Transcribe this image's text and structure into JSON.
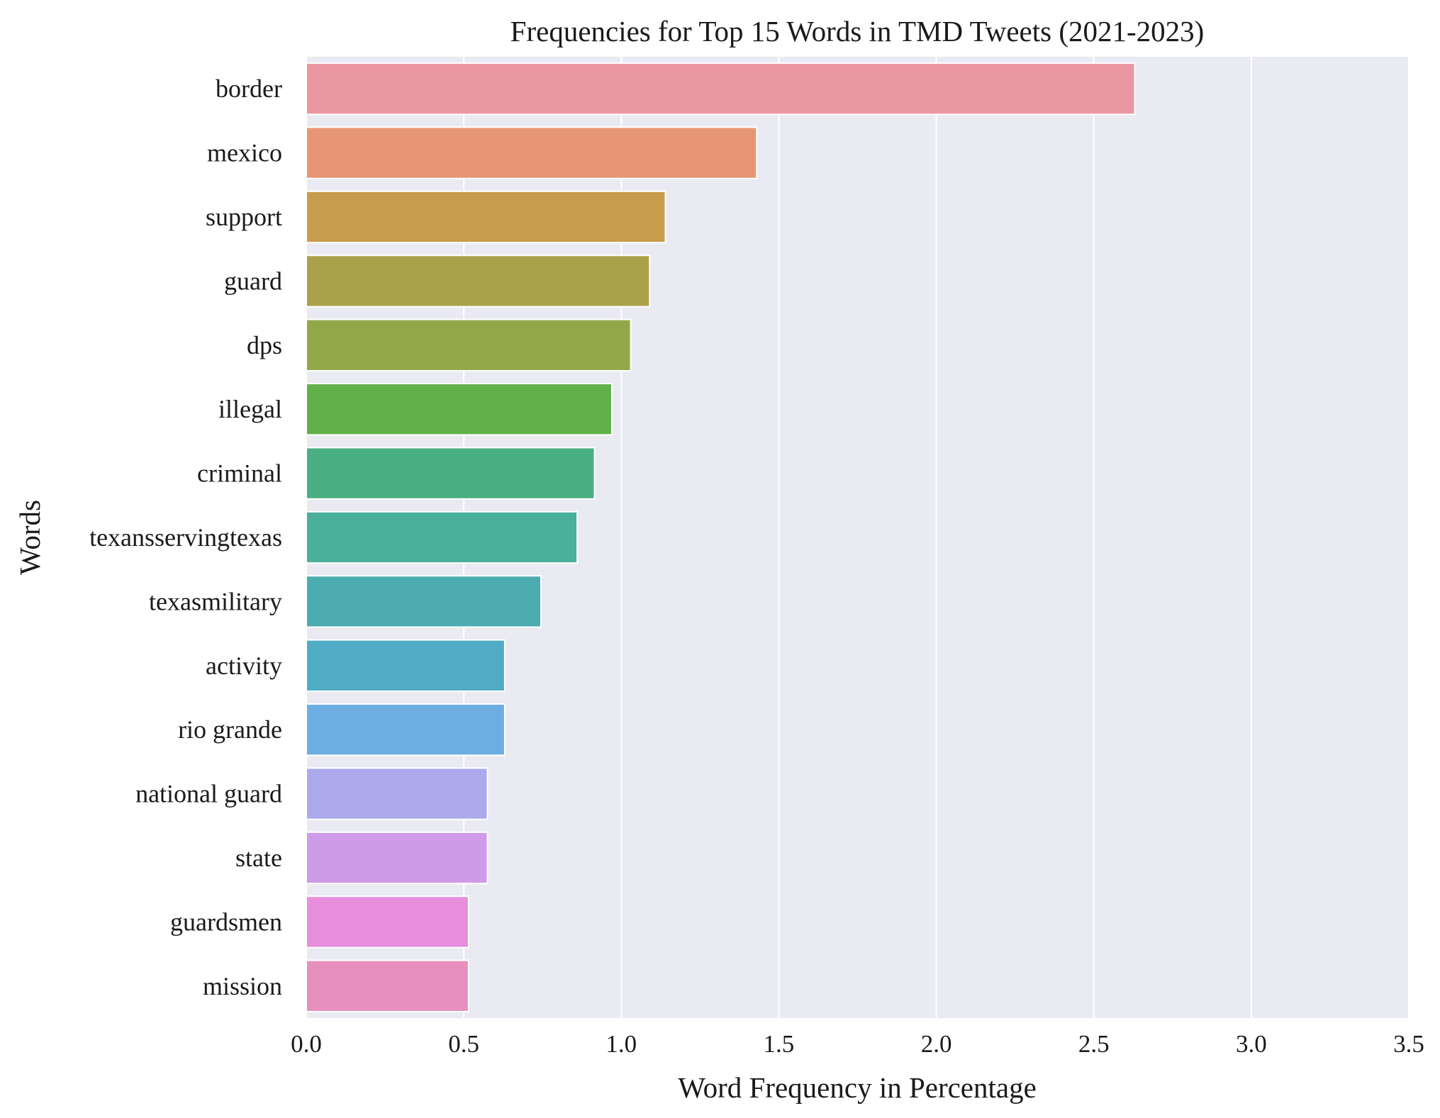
{
  "chart_data": {
    "type": "bar",
    "orientation": "horizontal",
    "title": "Frequencies for Top 15 Words in TMD Tweets (2021-2023)",
    "xlabel": "Word Frequency in Percentage",
    "ylabel": "Words",
    "xlim": [
      0,
      3.5
    ],
    "xticks": [
      0.0,
      0.5,
      1.0,
      1.5,
      2.0,
      2.5,
      3.0,
      3.5
    ],
    "xtick_labels": [
      "0.0",
      "0.5",
      "1.0",
      "1.5",
      "2.0",
      "2.5",
      "3.0",
      "3.5"
    ],
    "grid": true,
    "categories": [
      "border",
      "mexico",
      "support",
      "guard",
      "dps",
      "illegal",
      "criminal",
      "texansservingtexas",
      "texasmilitary",
      "activity",
      "rio grande",
      "national guard",
      "state",
      "guardsmen",
      "mission"
    ],
    "values": [
      2.63,
      1.43,
      1.14,
      1.09,
      1.03,
      0.97,
      0.915,
      0.86,
      0.745,
      0.63,
      0.63,
      0.575,
      0.575,
      0.515,
      0.515
    ],
    "colors": [
      "#eb97a3",
      "#e79675",
      "#c89c4d",
      "#aaa24a",
      "#92a848",
      "#62b049",
      "#4aaf82",
      "#4aaf9b",
      "#4cacb0",
      "#50acc4",
      "#6daee2",
      "#ada9ed",
      "#ce9be8",
      "#e78edc",
      "#e890bd"
    ],
    "background_color": "#eaeaf2",
    "grid_color": "#ffffff"
  }
}
